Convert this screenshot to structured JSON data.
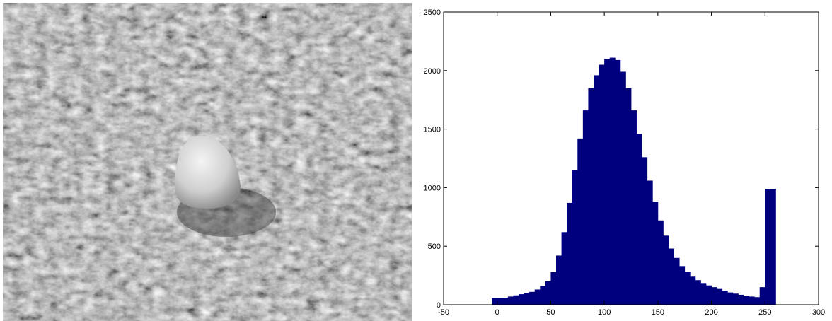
{
  "chart_data": {
    "type": "histogram",
    "bins": [
      -5,
      0,
      5,
      10,
      15,
      20,
      25,
      30,
      35,
      40,
      45,
      50,
      55,
      60,
      65,
      70,
      75,
      80,
      85,
      90,
      95,
      100,
      105,
      110,
      115,
      120,
      125,
      130,
      135,
      140,
      145,
      150,
      155,
      160,
      165,
      170,
      175,
      180,
      185,
      190,
      195,
      200,
      205,
      210,
      215,
      220,
      225,
      230,
      235,
      240,
      245,
      250,
      255,
      260
    ],
    "values": [
      60,
      60,
      60,
      70,
      80,
      90,
      100,
      110,
      130,
      160,
      200,
      280,
      420,
      620,
      870,
      1150,
      1420,
      1660,
      1850,
      1960,
      2050,
      2100,
      2110,
      2090,
      1990,
      1850,
      1660,
      1460,
      1260,
      1060,
      880,
      720,
      590,
      480,
      400,
      330,
      280,
      240,
      210,
      185,
      165,
      150,
      135,
      120,
      105,
      95,
      85,
      75,
      70,
      65,
      150,
      990,
      990
    ],
    "color": "#00007f",
    "xlim": [
      -50,
      300
    ],
    "xticks": [
      -50,
      0,
      50,
      100,
      150,
      200,
      250,
      300
    ],
    "ylim": [
      0,
      2500
    ],
    "yticks": [
      0,
      500,
      1000,
      1500,
      2000,
      2500
    ]
  }
}
